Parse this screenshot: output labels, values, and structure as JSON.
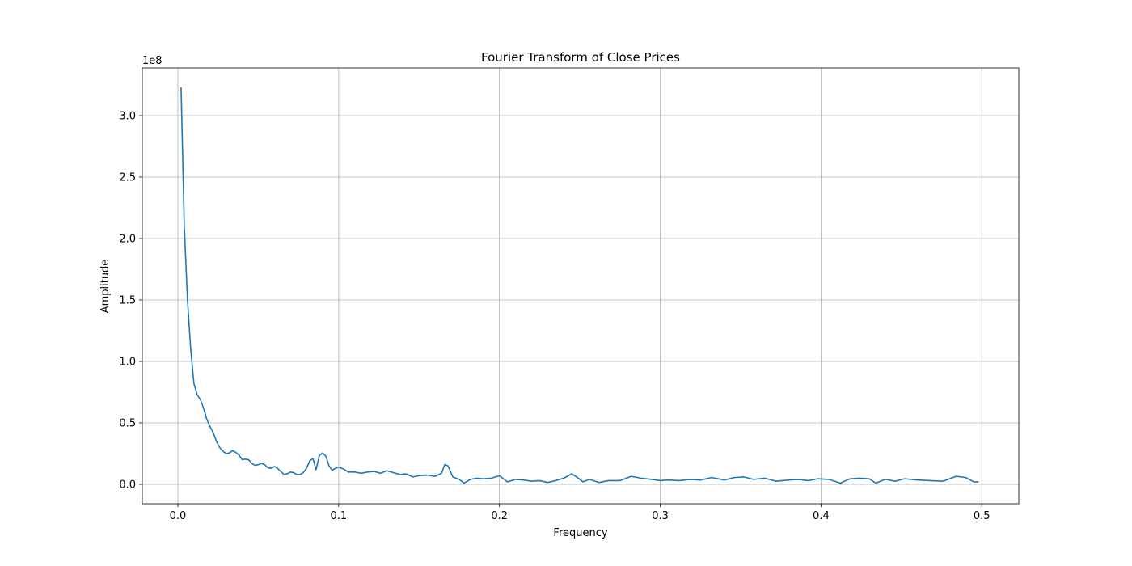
{
  "chart_data": {
    "type": "line",
    "title": "Fourier Transform of Close Prices",
    "xlabel": "Frequency",
    "ylabel": "Amplitude",
    "y_offset_label": "1e8",
    "x": [
      0.002,
      0.004,
      0.006,
      0.008,
      0.01,
      0.012,
      0.014,
      0.016,
      0.018,
      0.02,
      0.022,
      0.024,
      0.026,
      0.028,
      0.03,
      0.032,
      0.034,
      0.036,
      0.038,
      0.04,
      0.042,
      0.044,
      0.046,
      0.048,
      0.05,
      0.052,
      0.054,
      0.056,
      0.058,
      0.06,
      0.062,
      0.064,
      0.066,
      0.068,
      0.07,
      0.072,
      0.074,
      0.076,
      0.078,
      0.08,
      0.082,
      0.084,
      0.086,
      0.088,
      0.09,
      0.092,
      0.094,
      0.096,
      0.098,
      0.1,
      0.103,
      0.106,
      0.11,
      0.114,
      0.118,
      0.122,
      0.126,
      0.13,
      0.134,
      0.138,
      0.142,
      0.146,
      0.15,
      0.155,
      0.16,
      0.164,
      0.166,
      0.168,
      0.171,
      0.175,
      0.178,
      0.182,
      0.186,
      0.19,
      0.195,
      0.2,
      0.205,
      0.21,
      0.215,
      0.22,
      0.225,
      0.23,
      0.235,
      0.24,
      0.245,
      0.248,
      0.252,
      0.256,
      0.262,
      0.268,
      0.275,
      0.282,
      0.288,
      0.295,
      0.3,
      0.305,
      0.312,
      0.318,
      0.325,
      0.332,
      0.34,
      0.346,
      0.352,
      0.358,
      0.365,
      0.372,
      0.38,
      0.386,
      0.392,
      0.398,
      0.405,
      0.412,
      0.418,
      0.424,
      0.43,
      0.434,
      0.44,
      0.446,
      0.452,
      0.46,
      0.468,
      0.476,
      0.484,
      0.49,
      0.495,
      0.498
    ],
    "series": [
      {
        "name": "Amplitude",
        "color": "#1f77b4",
        "values": [
          3.23,
          2.1,
          1.5,
          1.1,
          0.82,
          0.73,
          0.69,
          0.62,
          0.53,
          0.47,
          0.42,
          0.35,
          0.3,
          0.27,
          0.25,
          0.255,
          0.275,
          0.26,
          0.24,
          0.2,
          0.205,
          0.2,
          0.17,
          0.155,
          0.16,
          0.17,
          0.16,
          0.135,
          0.13,
          0.145,
          0.13,
          0.105,
          0.08,
          0.085,
          0.1,
          0.095,
          0.08,
          0.08,
          0.095,
          0.13,
          0.19,
          0.21,
          0.12,
          0.235,
          0.255,
          0.23,
          0.15,
          0.115,
          0.13,
          0.14,
          0.125,
          0.1,
          0.1,
          0.09,
          0.1,
          0.105,
          0.09,
          0.11,
          0.095,
          0.08,
          0.085,
          0.06,
          0.07,
          0.075,
          0.065,
          0.09,
          0.16,
          0.15,
          0.06,
          0.04,
          0.01,
          0.04,
          0.05,
          0.045,
          0.05,
          0.07,
          0.02,
          0.04,
          0.035,
          0.025,
          0.03,
          0.015,
          0.03,
          0.05,
          0.085,
          0.06,
          0.02,
          0.04,
          0.015,
          0.03,
          0.03,
          0.065,
          0.05,
          0.04,
          0.03,
          0.035,
          0.03,
          0.04,
          0.035,
          0.055,
          0.035,
          0.055,
          0.06,
          0.04,
          0.05,
          0.025,
          0.035,
          0.04,
          0.03,
          0.045,
          0.04,
          0.01,
          0.045,
          0.05,
          0.045,
          0.01,
          0.04,
          0.025,
          0.045,
          0.035,
          0.03,
          0.025,
          0.065,
          0.055,
          0.02,
          0.02
        ]
      }
    ],
    "xlim": [
      -0.0221,
      0.523
    ],
    "ylim": [
      -0.158,
      3.388
    ],
    "xticks": [
      {
        "value": 0,
        "label": "0.0"
      },
      0.1,
      0.2,
      0.3,
      0.4,
      0.5
    ],
    "yticks": [
      {
        "value": 0,
        "label": "0.0"
      },
      0.5,
      {
        "value": 1,
        "label": "1.0"
      },
      1.5,
      {
        "value": 2,
        "label": "2.0"
      },
      2.5,
      {
        "value": 3,
        "label": "3.0"
      }
    ],
    "grid": true
  }
}
